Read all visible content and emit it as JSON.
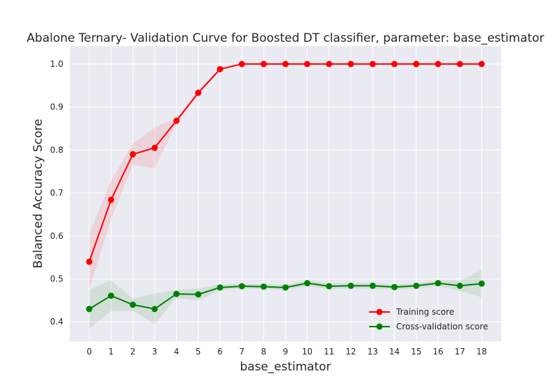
{
  "chart_data": {
    "type": "line",
    "title": "Abalone Ternary- Validation Curve for Boosted DT classifier, parameter: base_estimator",
    "xlabel": "base_estimator",
    "ylabel": "Balanced Accuracy Score",
    "x": [
      0,
      1,
      2,
      3,
      4,
      5,
      6,
      7,
      8,
      9,
      10,
      11,
      12,
      13,
      14,
      15,
      16,
      17,
      18
    ],
    "xticks": [
      "0",
      "1",
      "2",
      "3",
      "4",
      "5",
      "6",
      "7",
      "8",
      "9",
      "10",
      "11",
      "12",
      "13",
      "14",
      "15",
      "16",
      "17",
      "18"
    ],
    "yticks": [
      "0.4",
      "0.5",
      "0.6",
      "0.7",
      "0.8",
      "0.9",
      "1.0"
    ],
    "xlim": [
      -0.9,
      18.9
    ],
    "ylim": [
      0.355,
      1.042
    ],
    "grid": true,
    "legend_position": "lower-right",
    "series": [
      {
        "name": "Training score",
        "color": "#ff0000",
        "values": [
          0.54,
          0.684,
          0.79,
          0.805,
          0.868,
          0.933,
          0.988,
          1.0,
          1.0,
          1.0,
          1.0,
          1.0,
          1.0,
          1.0,
          1.0,
          1.0,
          1.0,
          1.0,
          1.0
        ],
        "lower": [
          0.475,
          0.64,
          0.765,
          0.758,
          0.862,
          0.928,
          0.985,
          1.0,
          1.0,
          1.0,
          1.0,
          1.0,
          1.0,
          1.0,
          1.0,
          1.0,
          1.0,
          1.0,
          1.0
        ],
        "upper": [
          0.605,
          0.728,
          0.815,
          0.852,
          0.874,
          0.938,
          0.991,
          1.0,
          1.0,
          1.0,
          1.0,
          1.0,
          1.0,
          1.0,
          1.0,
          1.0,
          1.0,
          1.0,
          1.0
        ]
      },
      {
        "name": "Cross-validation score",
        "color": "#008000",
        "values": [
          0.43,
          0.461,
          0.44,
          0.43,
          0.465,
          0.464,
          0.48,
          0.483,
          0.482,
          0.48,
          0.49,
          0.483,
          0.484,
          0.484,
          0.481,
          0.484,
          0.49,
          0.484,
          0.489
        ],
        "lower": [
          0.385,
          0.425,
          0.426,
          0.394,
          0.456,
          0.45,
          0.473,
          0.478,
          0.476,
          0.474,
          0.483,
          0.476,
          0.478,
          0.477,
          0.475,
          0.478,
          0.483,
          0.472,
          0.457
        ],
        "upper": [
          0.475,
          0.497,
          0.454,
          0.466,
          0.474,
          0.478,
          0.487,
          0.488,
          0.488,
          0.486,
          0.497,
          0.49,
          0.49,
          0.491,
          0.487,
          0.49,
          0.497,
          0.496,
          0.521
        ]
      }
    ]
  }
}
